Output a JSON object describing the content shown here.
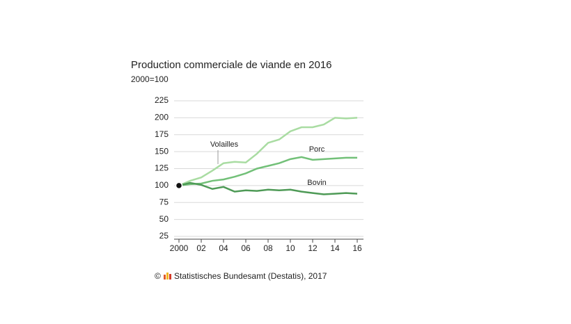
{
  "chart_data": {
    "type": "line",
    "title": "Production commerciale de viande en 2016",
    "subtitle": "2000=100",
    "x": [
      2000,
      2001,
      2002,
      2003,
      2004,
      2005,
      2006,
      2007,
      2008,
      2009,
      2010,
      2011,
      2012,
      2013,
      2014,
      2015,
      2016
    ],
    "series": [
      {
        "name": "Volailles",
        "color": "#a9dca2",
        "values": [
          100,
          107,
          112,
          122,
          133,
          135,
          134,
          147,
          163,
          168,
          180,
          186,
          186,
          190,
          200,
          199,
          200
        ]
      },
      {
        "name": "Porc",
        "color": "#72c078",
        "values": [
          100,
          102,
          103,
          107,
          109,
          113,
          118,
          125,
          129,
          133,
          139,
          142,
          138,
          139,
          140,
          141,
          141
        ]
      },
      {
        "name": "Bovin",
        "color": "#4e9a56",
        "values": [
          100,
          104,
          101,
          95,
          98,
          91,
          93,
          92,
          94,
          93,
          94,
          91,
          89,
          87,
          88,
          89,
          88
        ]
      }
    ],
    "xlim": [
      2000,
      2016
    ],
    "xticks": [
      2000,
      {
        "value": 2002,
        "label": "02"
      },
      {
        "value": 2004,
        "label": "04"
      },
      {
        "value": 2006,
        "label": "06"
      },
      {
        "value": 2008,
        "label": "08"
      },
      {
        "value": 2010,
        "label": "10"
      },
      {
        "value": 2012,
        "label": "12"
      },
      {
        "value": 2014,
        "label": "14"
      },
      {
        "value": 2016,
        "label": "16"
      }
    ],
    "ylim": [
      25,
      225
    ],
    "yticks": [
      25,
      50,
      75,
      100,
      125,
      150,
      175,
      200,
      225
    ],
    "grid": true,
    "copyright": "©",
    "source": "Statistisches Bundesamt (Destatis), 2017"
  }
}
